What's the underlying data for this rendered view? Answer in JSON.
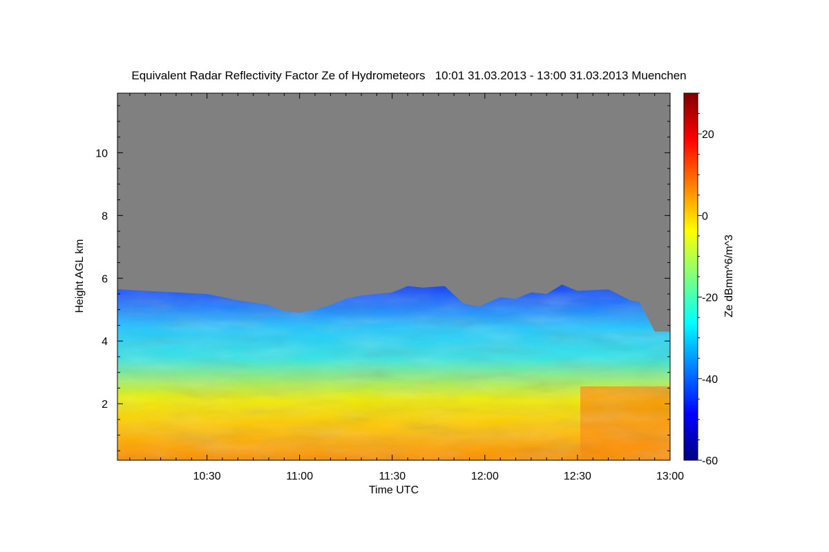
{
  "chart_data": {
    "type": "heatmap",
    "title": "Equivalent Radar Reflectivity Factor Ze of Hydrometeors   10:01 31.03.2013 - 13:00 31.03.2013 Muenchen",
    "xlabel": "Time UTC",
    "ylabel": "Height AGL km",
    "x_tick_labels": [
      "10:30",
      "11:00",
      "11:30",
      "12:00",
      "12:30",
      "13:00"
    ],
    "x_tick_minutes": [
      30,
      60,
      90,
      120,
      150,
      180
    ],
    "xlim_minutes": [
      1,
      180
    ],
    "y_ticks": [
      2,
      4,
      6,
      8,
      10
    ],
    "ylim": [
      0.2,
      11.9
    ],
    "colorbar": {
      "label": "Ze dBmm^6/m^3",
      "ticks": [
        20,
        0,
        -20,
        -40,
        -60
      ],
      "range": [
        -60,
        30
      ],
      "colors": [
        "#00007f",
        "#0000ff",
        "#007fff",
        "#00ffff",
        "#7fff7f",
        "#ffff00",
        "#ff7f00",
        "#ff0000",
        "#7f0000"
      ]
    },
    "no_signal_color": "#808080",
    "cloud_top_km": [
      [
        1,
        5.65
      ],
      [
        10,
        5.6
      ],
      [
        20,
        5.55
      ],
      [
        30,
        5.5
      ],
      [
        40,
        5.3
      ],
      [
        50,
        5.15
      ],
      [
        55,
        4.95
      ],
      [
        60,
        4.9
      ],
      [
        65,
        5.0
      ],
      [
        70,
        5.15
      ],
      [
        75,
        5.35
      ],
      [
        80,
        5.45
      ],
      [
        90,
        5.55
      ],
      [
        95,
        5.75
      ],
      [
        100,
        5.7
      ],
      [
        107,
        5.75
      ],
      [
        113,
        5.2
      ],
      [
        118,
        5.1
      ],
      [
        125,
        5.4
      ],
      [
        130,
        5.35
      ],
      [
        135,
        5.55
      ],
      [
        140,
        5.5
      ],
      [
        145,
        5.8
      ],
      [
        150,
        5.6
      ],
      [
        160,
        5.65
      ],
      [
        167,
        5.3
      ],
      [
        170,
        5.25
      ],
      [
        175,
        4.3
      ],
      [
        180,
        4.3
      ]
    ]
  }
}
